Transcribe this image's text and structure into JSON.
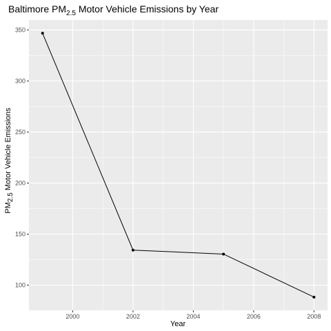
{
  "chart_data": {
    "type": "line",
    "title_parts": [
      "Baltimore  PM",
      "2.5",
      " Motor Vehicle Emissions by Year"
    ],
    "xlabel": "Year",
    "ylabel_parts": [
      "PM",
      "2.5",
      " Motor Vehicle Emissions"
    ],
    "x": [
      1999,
      2002,
      2005,
      2008
    ],
    "y": [
      346.82,
      134.31,
      130.43,
      88.28
    ],
    "xlim": [
      1998.55,
      2008.45
    ],
    "ylim": [
      75.35,
      359.75
    ],
    "xticks": [
      2000,
      2002,
      2004,
      2006,
      2008
    ],
    "yticks": [
      100,
      150,
      200,
      250,
      300,
      350
    ],
    "grid": true,
    "legend": "none",
    "colors": {
      "panel": "#ebebeb",
      "grid_major": "#ffffff",
      "line": "#000000",
      "point": "#000000",
      "tick_text": "#4d4d4d",
      "tick_mark": "#333333"
    }
  }
}
